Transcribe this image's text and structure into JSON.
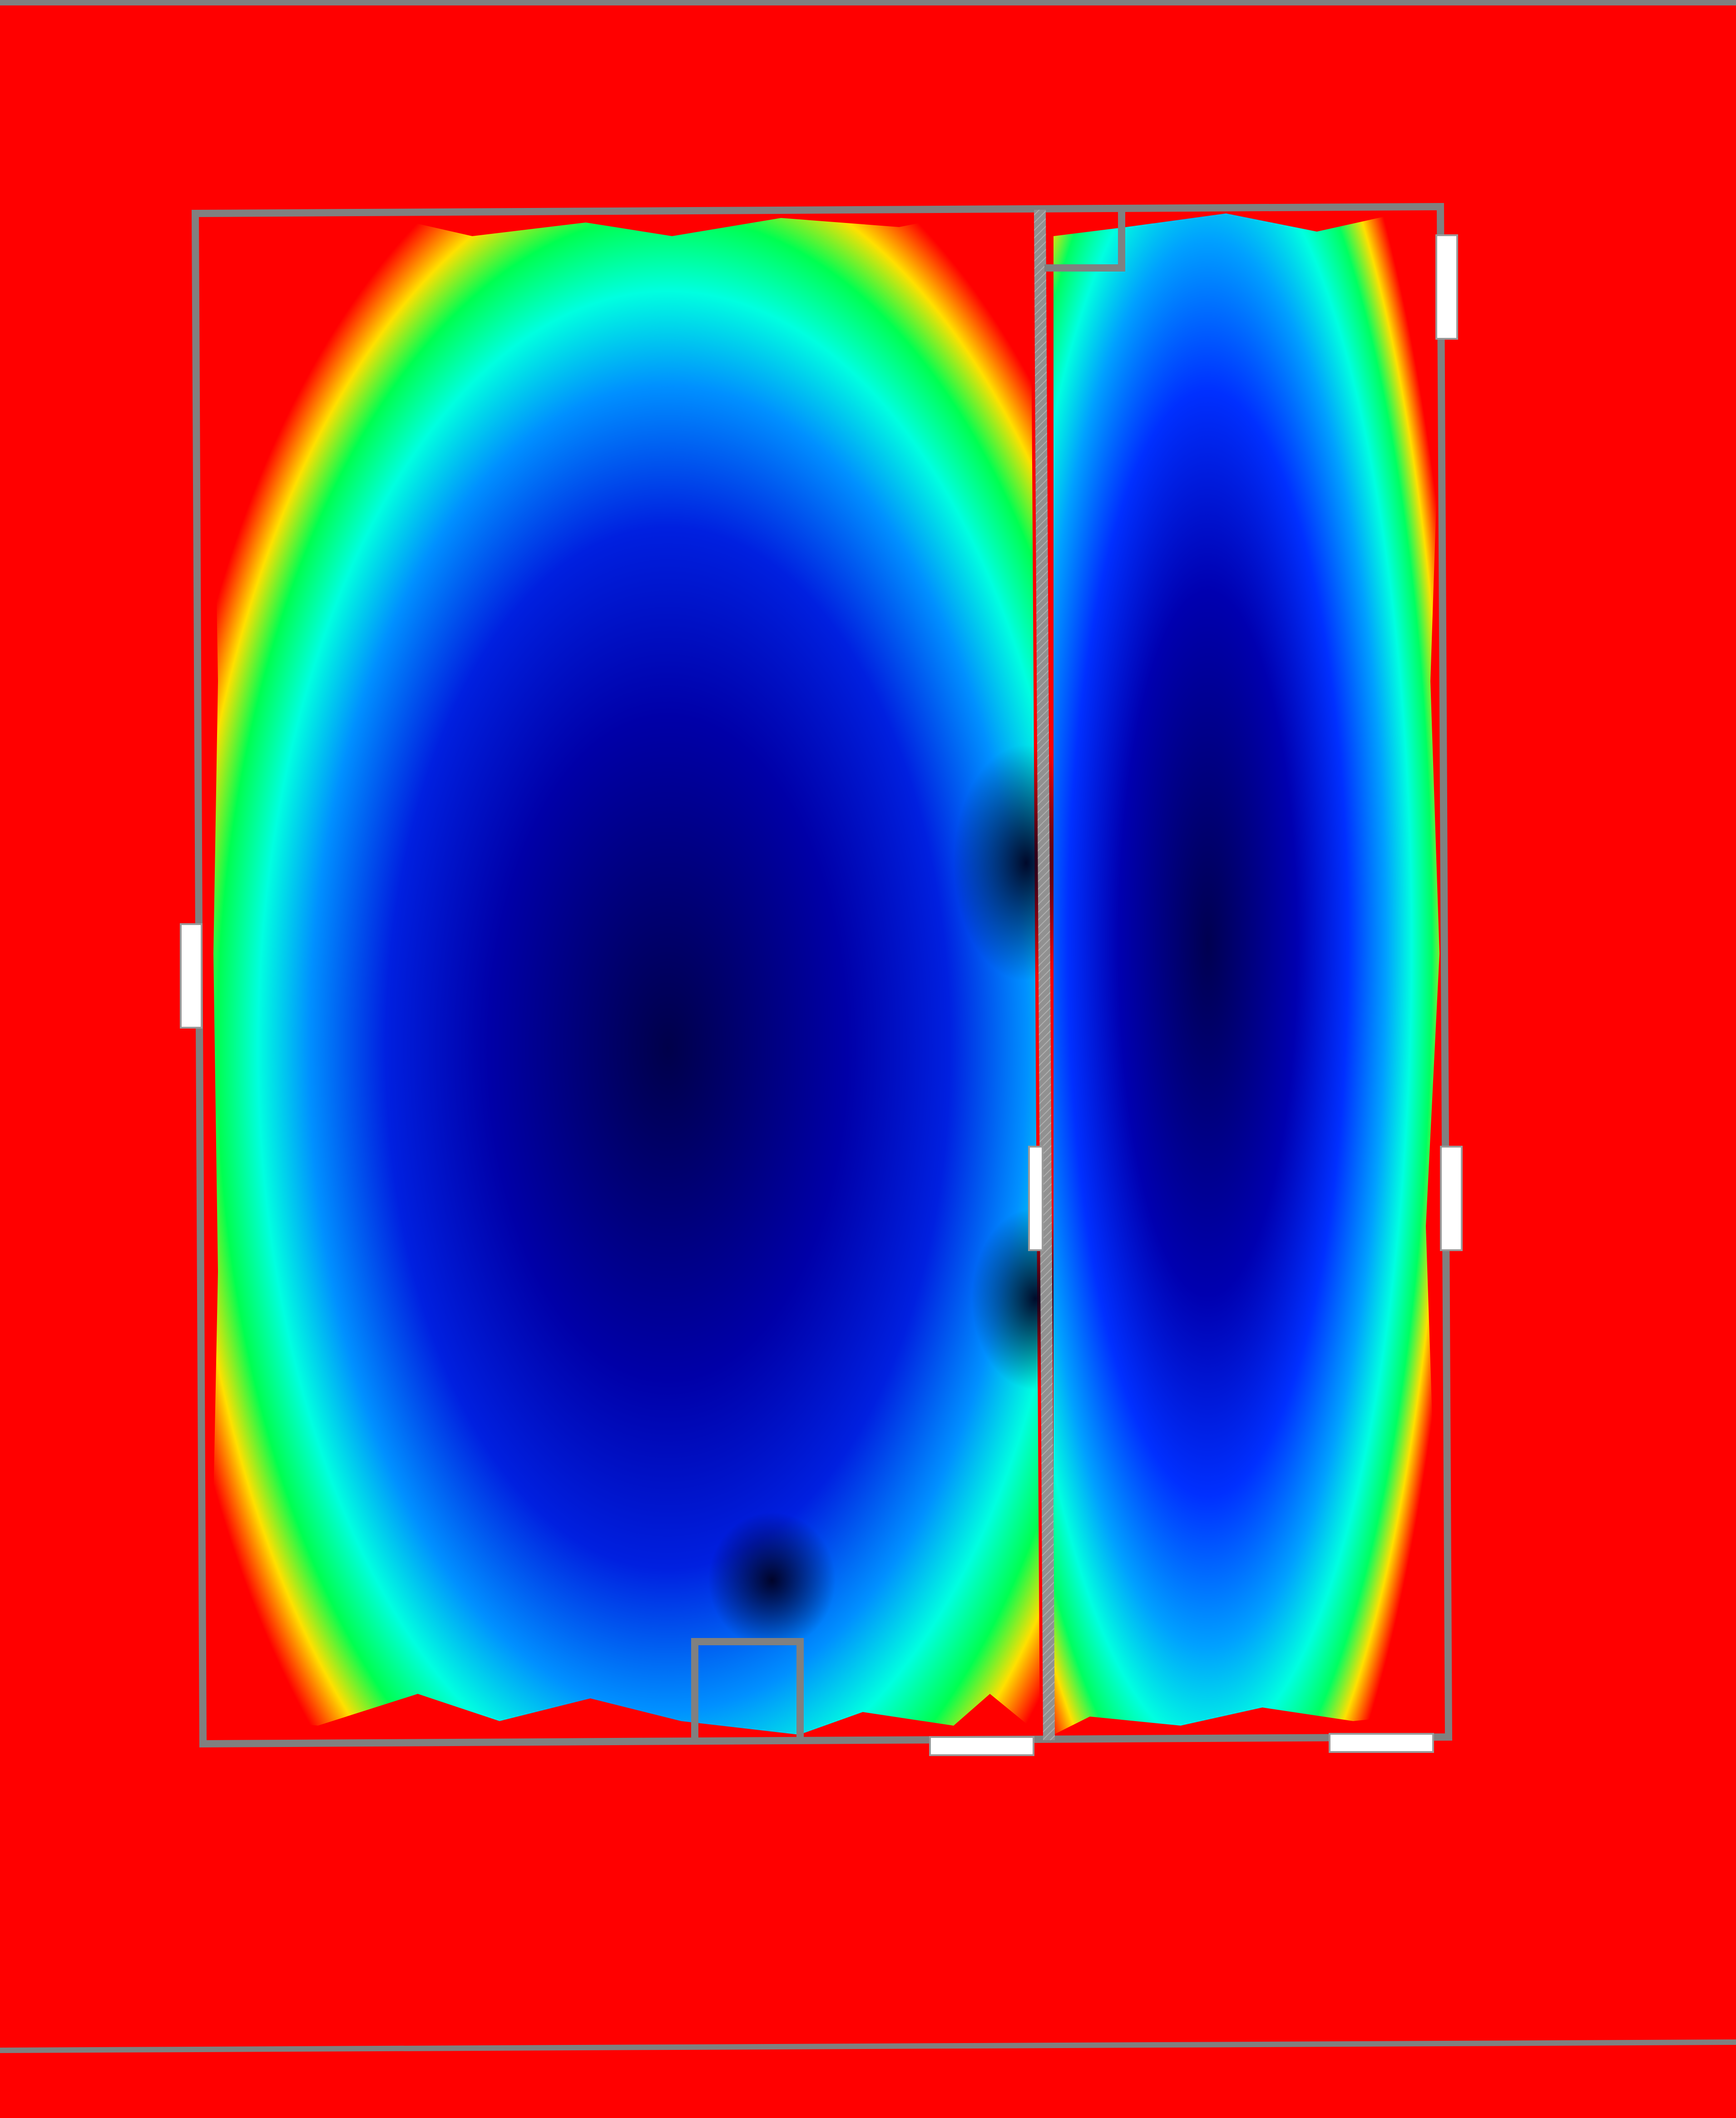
{
  "view": {
    "kind": "floor-plan heat map",
    "legend_visible": false,
    "text_labels": []
  },
  "colors": {
    "background": "#ff0000",
    "wall": "#808080",
    "door": "#ffffff",
    "scale": [
      "#ff0000",
      "#ffd000",
      "#00ff40",
      "#00ffd0",
      "#0060ff",
      "#0000c0",
      "#00004a"
    ]
  },
  "plan": {
    "rooms": [
      "left-room",
      "right-room"
    ],
    "interior_walls": 1,
    "doors": 6,
    "wall_notches": 2
  }
}
